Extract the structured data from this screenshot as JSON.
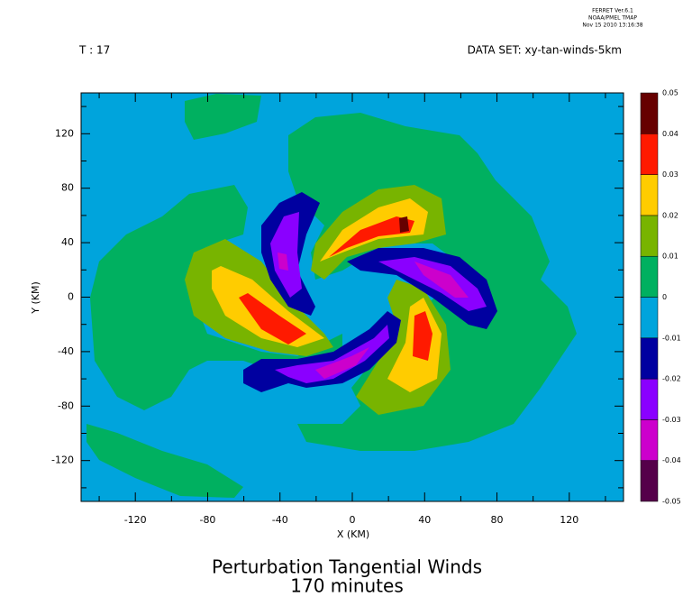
{
  "header": {
    "lines": [
      "FERRET Ver.6.1",
      "NOAA/PMEL TMAP",
      "Nov 15 2010 13:16:38"
    ],
    "time": "T : 17",
    "dataset": "DATA SET: xy-tan-winds-5km"
  },
  "chart_data": {
    "type": "contour",
    "title": "Perturbation Tangential Winds",
    "subtitle": "170 minutes",
    "x_label": "X (KM)",
    "y_label": "Y (KM)",
    "xlim": [
      -150,
      150
    ],
    "ylim": [
      -150,
      150
    ],
    "xticks": [
      -120,
      -80,
      -40,
      0,
      40,
      80,
      120
    ],
    "yticks": [
      -120,
      -80,
      -40,
      0,
      40,
      80,
      120
    ],
    "xminorticks": [
      -140,
      -100,
      -60,
      -20,
      20,
      60,
      100,
      140
    ],
    "yminorticks": [
      -140,
      -100,
      -60,
      -20,
      20,
      60,
      100,
      140
    ],
    "levels": [
      -0.05,
      -0.04,
      -0.03,
      -0.02,
      -0.01,
      0,
      0.01,
      0.02,
      0.03,
      0.04,
      0.05
    ],
    "colors": [
      "#55004a",
      "#cc00cc",
      "#8a00ff",
      "#0000a0",
      "#00a4dc",
      "#00b060",
      "#78b400",
      "#ffcc00",
      "#ff1a00",
      "#660000"
    ]
  }
}
